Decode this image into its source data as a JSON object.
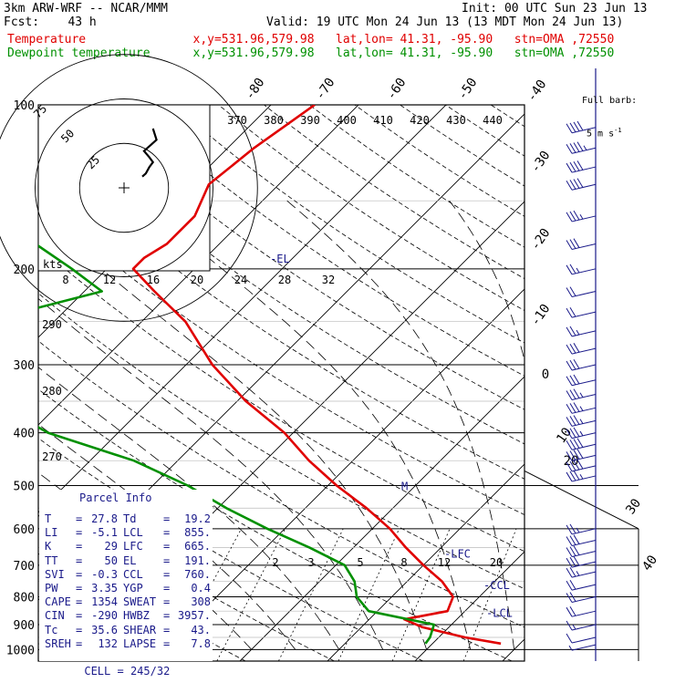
{
  "header": {
    "model": "3km ARW-WRF -- NCAR/MMM",
    "init": "Init: 00 UTC Sun 23 Jun 13",
    "fcst": "Fcst:    43 h",
    "valid": "Valid: 19 UTC Mon 24 Jun 13 (13 MDT Mon 24 Jun 13)",
    "temperature_line": "Temperature               x,y=531.96,579.98   lat,lon= 41.31, -95.90   stn=OMA ,72550",
    "dewpoint_line": "Dewpoint temperature      x,y=531.96,579.98   lat,lon= 41.31, -95.90   stn=OMA ,72550"
  },
  "colors": {
    "temperature": "#e00000",
    "dewpoint": "#009000",
    "parcel_panel": "#1a1a8a",
    "wind_barbs": "#1a1a8a",
    "grid": "#000000"
  },
  "chart_data": {
    "type": "skew-t",
    "pressure_axis_labels": [
      "100",
      "200",
      "300",
      "400",
      "500",
      "600",
      "700",
      "800",
      "900",
      "1000"
    ],
    "temperature_isotherm_labels": [
      "-80",
      "-70",
      "-60",
      "-50",
      "-40",
      "-30",
      "-20",
      "-10",
      "0",
      "10",
      "20",
      "30",
      "40"
    ],
    "theta_labels": [
      "370",
      "380",
      "390",
      "400",
      "410",
      "420",
      "430",
      "440"
    ],
    "mixing_ratio_labels": [
      "2",
      "3",
      "5",
      "8",
      "12",
      "20"
    ],
    "hodograph_x_labels": [
      "8",
      "12",
      "16",
      "20",
      "24",
      "28",
      "32"
    ],
    "dry_adiabat_labels": [
      "290",
      "280",
      "270"
    ],
    "hodograph_ring_labels": [
      "75",
      "50",
      "25"
    ],
    "hodograph_units": "kts",
    "wind_legend_title": "Full barb:",
    "wind_legend_value": "5 m s",
    "wind_legend_exp": "-1",
    "level_labels": [
      {
        "label": "-EL",
        "p": 191
      },
      {
        "label": "-LFC",
        "p": 665
      },
      {
        "label": "-CCL",
        "p": 760
      },
      {
        "label": "-LCL",
        "p": 855
      },
      {
        "label": "M",
        "p": 500
      }
    ],
    "series": [
      {
        "name": "Temperature",
        "points": [
          {
            "p": 100,
            "t": -55
          },
          {
            "p": 120,
            "t": -57
          },
          {
            "p": 140,
            "t": -58
          },
          {
            "p": 160,
            "t": -56
          },
          {
            "p": 180,
            "t": -56
          },
          {
            "p": 191,
            "t": -57
          },
          {
            "p": 200,
            "t": -57
          },
          {
            "p": 220,
            "t": -52
          },
          {
            "p": 250,
            "t": -45
          },
          {
            "p": 300,
            "t": -37
          },
          {
            "p": 350,
            "t": -29
          },
          {
            "p": 400,
            "t": -21
          },
          {
            "p": 450,
            "t": -15
          },
          {
            "p": 500,
            "t": -9
          },
          {
            "p": 550,
            "t": -3
          },
          {
            "p": 600,
            "t": 2
          },
          {
            "p": 650,
            "t": 6
          },
          {
            "p": 700,
            "t": 10
          },
          {
            "p": 750,
            "t": 14
          },
          {
            "p": 800,
            "t": 17
          },
          {
            "p": 850,
            "t": 18
          },
          {
            "p": 880,
            "t": 14
          },
          {
            "p": 910,
            "t": 17
          },
          {
            "p": 950,
            "t": 23
          },
          {
            "p": 975,
            "t": 27.8
          }
        ]
      },
      {
        "name": "Dewpoint temperature",
        "points": [
          {
            "p": 100,
            "t": -89
          },
          {
            "p": 120,
            "t": -87
          },
          {
            "p": 140,
            "t": -88
          },
          {
            "p": 160,
            "t": -79
          },
          {
            "p": 180,
            "t": -71
          },
          {
            "p": 200,
            "t": -64
          },
          {
            "p": 220,
            "t": -58
          },
          {
            "p": 250,
            "t": -68
          },
          {
            "p": 280,
            "t": -68
          },
          {
            "p": 300,
            "t": -63
          },
          {
            "p": 340,
            "t": -58
          },
          {
            "p": 350,
            "t": -58
          },
          {
            "p": 400,
            "t": -48
          },
          {
            "p": 450,
            "t": -35
          },
          {
            "p": 500,
            "t": -26
          },
          {
            "p": 550,
            "t": -19
          },
          {
            "p": 600,
            "t": -12
          },
          {
            "p": 650,
            "t": -5
          },
          {
            "p": 700,
            "t": 1
          },
          {
            "p": 750,
            "t": 4
          },
          {
            "p": 800,
            "t": 6
          },
          {
            "p": 850,
            "t": 9
          },
          {
            "p": 900,
            "t": 18
          },
          {
            "p": 950,
            "t": 19
          },
          {
            "p": 975,
            "t": 19.2
          }
        ]
      }
    ],
    "hodograph_trace": [
      {
        "u": 0,
        "v": 15
      },
      {
        "u": 2,
        "v": 17
      },
      {
        "u": 4,
        "v": 21
      },
      {
        "u": 6,
        "v": 24
      },
      {
        "u": 4,
        "v": 27
      },
      {
        "u": 1,
        "v": 31
      },
      {
        "u": 5,
        "v": 35
      },
      {
        "u": 8,
        "v": 38
      },
      {
        "u": 6,
        "v": 45
      }
    ],
    "wind_barbs": [
      {
        "p": 110,
        "speed": 40
      },
      {
        "p": 120,
        "speed": 45
      },
      {
        "p": 130,
        "speed": 40
      },
      {
        "p": 140,
        "speed": 40
      },
      {
        "p": 160,
        "speed": 35
      },
      {
        "p": 180,
        "speed": 30
      },
      {
        "p": 200,
        "speed": 25
      },
      {
        "p": 220,
        "speed": 20
      },
      {
        "p": 240,
        "speed": 20
      },
      {
        "p": 260,
        "speed": 25
      },
      {
        "p": 280,
        "speed": 30
      },
      {
        "p": 300,
        "speed": 30
      },
      {
        "p": 320,
        "speed": 30
      },
      {
        "p": 340,
        "speed": 35
      },
      {
        "p": 360,
        "speed": 35
      },
      {
        "p": 380,
        "speed": 35
      },
      {
        "p": 400,
        "speed": 35
      },
      {
        "p": 420,
        "speed": 40
      },
      {
        "p": 440,
        "speed": 40
      },
      {
        "p": 460,
        "speed": 40
      },
      {
        "p": 480,
        "speed": 35
      },
      {
        "p": 600,
        "speed": 25
      },
      {
        "p": 630,
        "speed": 30
      },
      {
        "p": 660,
        "speed": 30
      },
      {
        "p": 690,
        "speed": 30
      },
      {
        "p": 720,
        "speed": 25
      },
      {
        "p": 760,
        "speed": 20
      },
      {
        "p": 800,
        "speed": 20
      },
      {
        "p": 850,
        "speed": 20
      },
      {
        "p": 900,
        "speed": 15
      },
      {
        "p": 950,
        "speed": 10
      },
      {
        "p": 980,
        "speed": 5
      }
    ]
  },
  "parcel_info": {
    "title": "Parcel Info",
    "rows": [
      {
        "l1": "T",
        "v1": "27.8",
        "l2": "Td",
        "v2": "19.2"
      },
      {
        "l1": "LI",
        "v1": "-5.1",
        "l2": "LCL",
        "v2": "855."
      },
      {
        "l1": "K",
        "v1": "29",
        "l2": "LFC",
        "v2": "665."
      },
      {
        "l1": "TT",
        "v1": "50",
        "l2": "EL",
        "v2": "191."
      },
      {
        "l1": "SVI",
        "v1": "-0.3",
        "l2": "CCL",
        "v2": "760."
      },
      {
        "l1": "PW",
        "v1": "3.35",
        "l2": "YGP",
        "v2": "0.4"
      },
      {
        "l1": "CAPE",
        "v1": "1354",
        "l2": "SWEAT",
        "v2": "308"
      },
      {
        "l1": "CIN",
        "v1": "-290",
        "l2": "HWBZ",
        "v2": "3957."
      },
      {
        "l1": "Tc",
        "v1": "35.6",
        "l2": "SHEAR",
        "v2": "43."
      },
      {
        "l1": "SREH",
        "v1": "132",
        "l2": "LAPSE",
        "v2": "7.8"
      }
    ],
    "cell_label": "CELL",
    "cell_value": "245/32"
  }
}
